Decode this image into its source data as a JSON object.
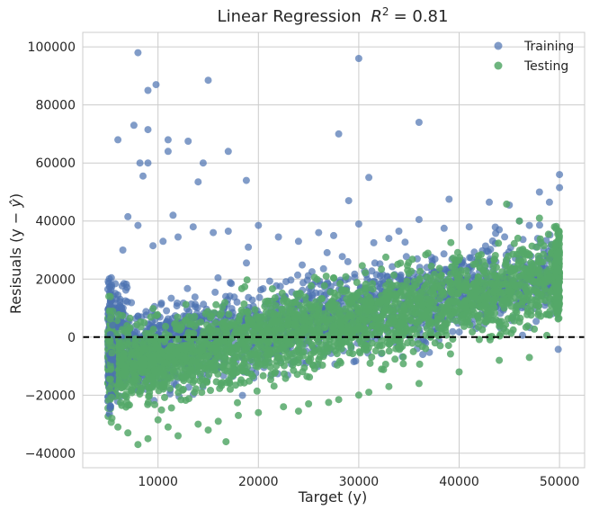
{
  "chart_data": {
    "type": "scatter",
    "title": "Linear Regression",
    "title_r2_label": "R",
    "title_r2_value": "= 0.81",
    "xlabel": "Target (y)",
    "ylabel_prefix": "Resisuals (y − ",
    "ylabel_hat": "ŷ",
    "ylabel_suffix": ")",
    "xlim": [
      2500,
      52500
    ],
    "ylim": [
      -45000,
      105000
    ],
    "x_ticks": [
      10000,
      20000,
      30000,
      40000,
      50000
    ],
    "y_ticks": [
      -40000,
      -20000,
      0,
      20000,
      40000,
      60000,
      80000,
      100000
    ],
    "x_tick_labels": [
      "10000",
      "20000",
      "30000",
      "40000",
      "50000"
    ],
    "y_tick_labels": [
      "−40000",
      "−20000",
      "0",
      "20000",
      "40000",
      "60000",
      "80000",
      "100000"
    ],
    "grid": true,
    "zero_line": 0,
    "legend_position": "top-right",
    "series": [
      {
        "name": "Training",
        "color": "#4c72b0",
        "outliers": [
          [
            8000,
            98000
          ],
          [
            9000,
            85000
          ],
          [
            9800,
            87000
          ],
          [
            7600,
            73000
          ],
          [
            9000,
            71500
          ],
          [
            8200,
            60000
          ],
          [
            9000,
            60000
          ],
          [
            6000,
            68000
          ],
          [
            11000,
            68000
          ],
          [
            11000,
            64000
          ],
          [
            13000,
            67500
          ],
          [
            15000,
            88500
          ],
          [
            17000,
            64000
          ],
          [
            14500,
            60000
          ],
          [
            14000,
            53500
          ],
          [
            8500,
            55500
          ],
          [
            18800,
            54000
          ],
          [
            30000,
            96000
          ],
          [
            28000,
            70000
          ],
          [
            36000,
            74000
          ],
          [
            31000,
            55000
          ],
          [
            29000,
            47000
          ],
          [
            39000,
            47500
          ],
          [
            43000,
            46500
          ],
          [
            45000,
            45500
          ],
          [
            48000,
            50000
          ],
          [
            50000,
            56000
          ],
          [
            50000,
            51500
          ],
          [
            49000,
            46500
          ],
          [
            7000,
            41500
          ],
          [
            11500,
            42000
          ],
          [
            8000,
            38500
          ],
          [
            13500,
            38000
          ],
          [
            17000,
            36500
          ],
          [
            20000,
            38500
          ],
          [
            22000,
            34500
          ],
          [
            26000,
            36000
          ],
          [
            30000,
            39000
          ],
          [
            33000,
            34000
          ],
          [
            36000,
            40500
          ],
          [
            38500,
            37500
          ],
          [
            41000,
            38000
          ],
          [
            44000,
            37000
          ],
          [
            47000,
            38500
          ],
          [
            15500,
            36000
          ],
          [
            10500,
            33000
          ],
          [
            12000,
            34500
          ],
          [
            24000,
            33000
          ],
          [
            27500,
            35000
          ],
          [
            34000,
            36500
          ],
          [
            46000,
            40000
          ],
          [
            6500,
            30000
          ],
          [
            9500,
            31500
          ],
          [
            19000,
            31000
          ],
          [
            31500,
            32500
          ]
        ]
      },
      {
        "name": "Testing",
        "color": "#55a868",
        "outliers": [
          [
            8000,
            -37000
          ],
          [
            7000,
            -33000
          ],
          [
            9000,
            -35000
          ],
          [
            12000,
            -34000
          ],
          [
            6000,
            -31000
          ],
          [
            14000,
            -30000
          ],
          [
            16000,
            -29000
          ],
          [
            11000,
            -31000
          ],
          [
            18000,
            -27000
          ],
          [
            20000,
            -26000
          ],
          [
            22500,
            -24000
          ],
          [
            25000,
            -23000
          ],
          [
            28000,
            -21500
          ],
          [
            30000,
            -20000
          ],
          [
            33000,
            -17000
          ],
          [
            36000,
            -16000
          ],
          [
            40000,
            -12000
          ],
          [
            44000,
            -8000
          ],
          [
            47000,
            -7000
          ],
          [
            24000,
            -25500
          ],
          [
            15000,
            -32000
          ],
          [
            10000,
            -28500
          ],
          [
            27000,
            -22500
          ],
          [
            31000,
            -19000
          ],
          [
            46000,
            40000
          ],
          [
            48000,
            41000
          ],
          [
            49500,
            38000
          ]
        ]
      }
    ],
    "legend": [
      {
        "label": "Training",
        "color": "#4c72b0"
      },
      {
        "label": "Testing",
        "color": "#55a868"
      }
    ]
  }
}
